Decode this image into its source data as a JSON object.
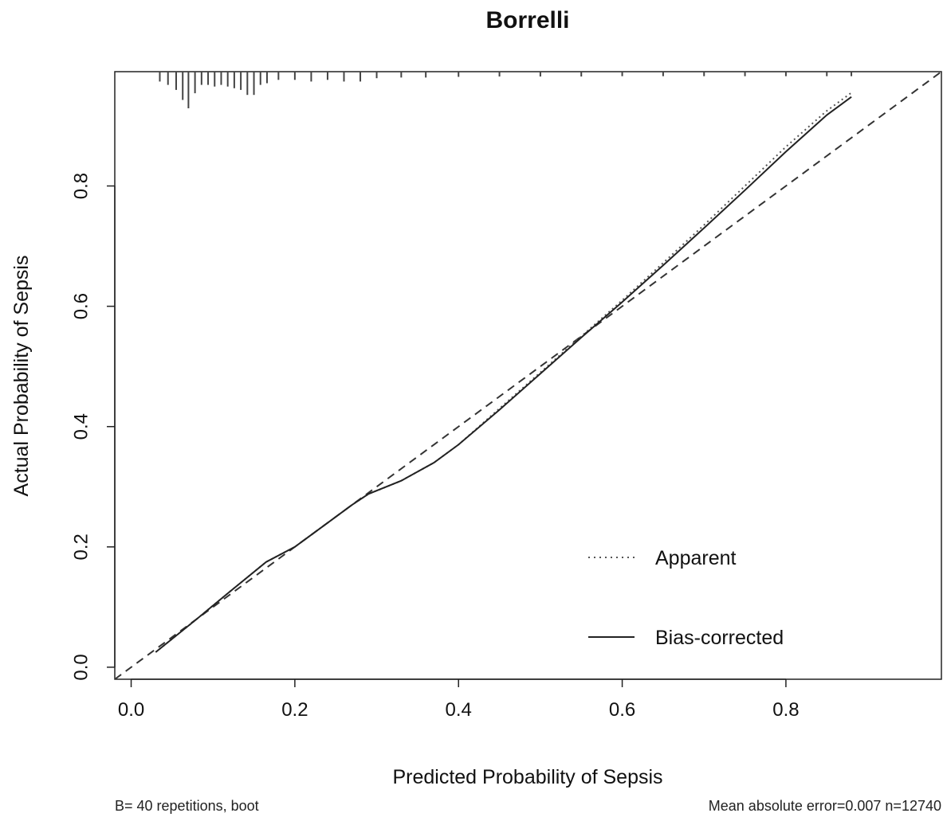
{
  "chart_data": {
    "type": "line",
    "title": "Borrelli",
    "xlabel": "Predicted Probability of Sepsis",
    "ylabel": "Actual Probability of Sepsis",
    "xlim": [
      -0.02,
      0.99
    ],
    "ylim": [
      -0.02,
      0.99
    ],
    "x_ticks": [
      "0.0",
      "0.2",
      "0.4",
      "0.6",
      "0.8"
    ],
    "y_ticks": [
      "0.0",
      "0.2",
      "0.4",
      "0.6",
      "0.8"
    ],
    "grid": false,
    "legend_position": "bottom-right",
    "reference_line": {
      "style": "dashed",
      "from": [
        -0.02,
        -0.02
      ],
      "to": [
        0.99,
        0.99
      ]
    },
    "series": [
      {
        "name": "Apparent",
        "style": "dotted",
        "x": [
          0.03,
          0.08,
          0.12,
          0.165,
          0.2,
          0.235,
          0.27,
          0.29,
          0.33,
          0.37,
          0.4,
          0.45,
          0.5,
          0.55,
          0.6,
          0.65,
          0.7,
          0.75,
          0.8,
          0.85,
          0.88
        ],
        "y": [
          0.025,
          0.08,
          0.125,
          0.175,
          0.2,
          0.235,
          0.27,
          0.288,
          0.31,
          0.34,
          0.37,
          0.43,
          0.49,
          0.55,
          0.61,
          0.672,
          0.735,
          0.8,
          0.865,
          0.925,
          0.955
        ]
      },
      {
        "name": "Bias-corrected",
        "style": "solid",
        "x": [
          0.03,
          0.08,
          0.12,
          0.165,
          0.2,
          0.235,
          0.27,
          0.29,
          0.33,
          0.37,
          0.4,
          0.45,
          0.5,
          0.55,
          0.6,
          0.65,
          0.7,
          0.75,
          0.8,
          0.85,
          0.88
        ],
        "y": [
          0.025,
          0.08,
          0.125,
          0.175,
          0.2,
          0.235,
          0.27,
          0.288,
          0.31,
          0.34,
          0.37,
          0.428,
          0.488,
          0.548,
          0.607,
          0.668,
          0.73,
          0.793,
          0.857,
          0.918,
          0.948
        ]
      }
    ],
    "rug": {
      "position": "top",
      "x": [
        0.035,
        0.045,
        0.055,
        0.063,
        0.07,
        0.078,
        0.086,
        0.094,
        0.102,
        0.11,
        0.118,
        0.126,
        0.134,
        0.142,
        0.15,
        0.158,
        0.166,
        0.18,
        0.2,
        0.22,
        0.24,
        0.26,
        0.28,
        0.3,
        0.33,
        0.36,
        0.4,
        0.45,
        0.5,
        0.55,
        0.6,
        0.65,
        0.7,
        0.75,
        0.8,
        0.85,
        0.88
      ],
      "height": [
        0.2,
        0.3,
        0.45,
        0.75,
        1.0,
        0.55,
        0.3,
        0.3,
        0.35,
        0.3,
        0.35,
        0.4,
        0.45,
        0.6,
        0.6,
        0.3,
        0.25,
        0.15,
        0.15,
        0.2,
        0.15,
        0.2,
        0.2,
        0.1,
        0.08,
        0.08,
        0.06,
        0.05,
        0.05,
        0.05,
        0.04,
        0.04,
        0.04,
        0.04,
        0.04,
        0.04,
        0.04
      ]
    }
  },
  "footnotes": {
    "left": "B= 40 repetitions, boot",
    "right": "Mean absolute error=0.007 n=12740"
  }
}
